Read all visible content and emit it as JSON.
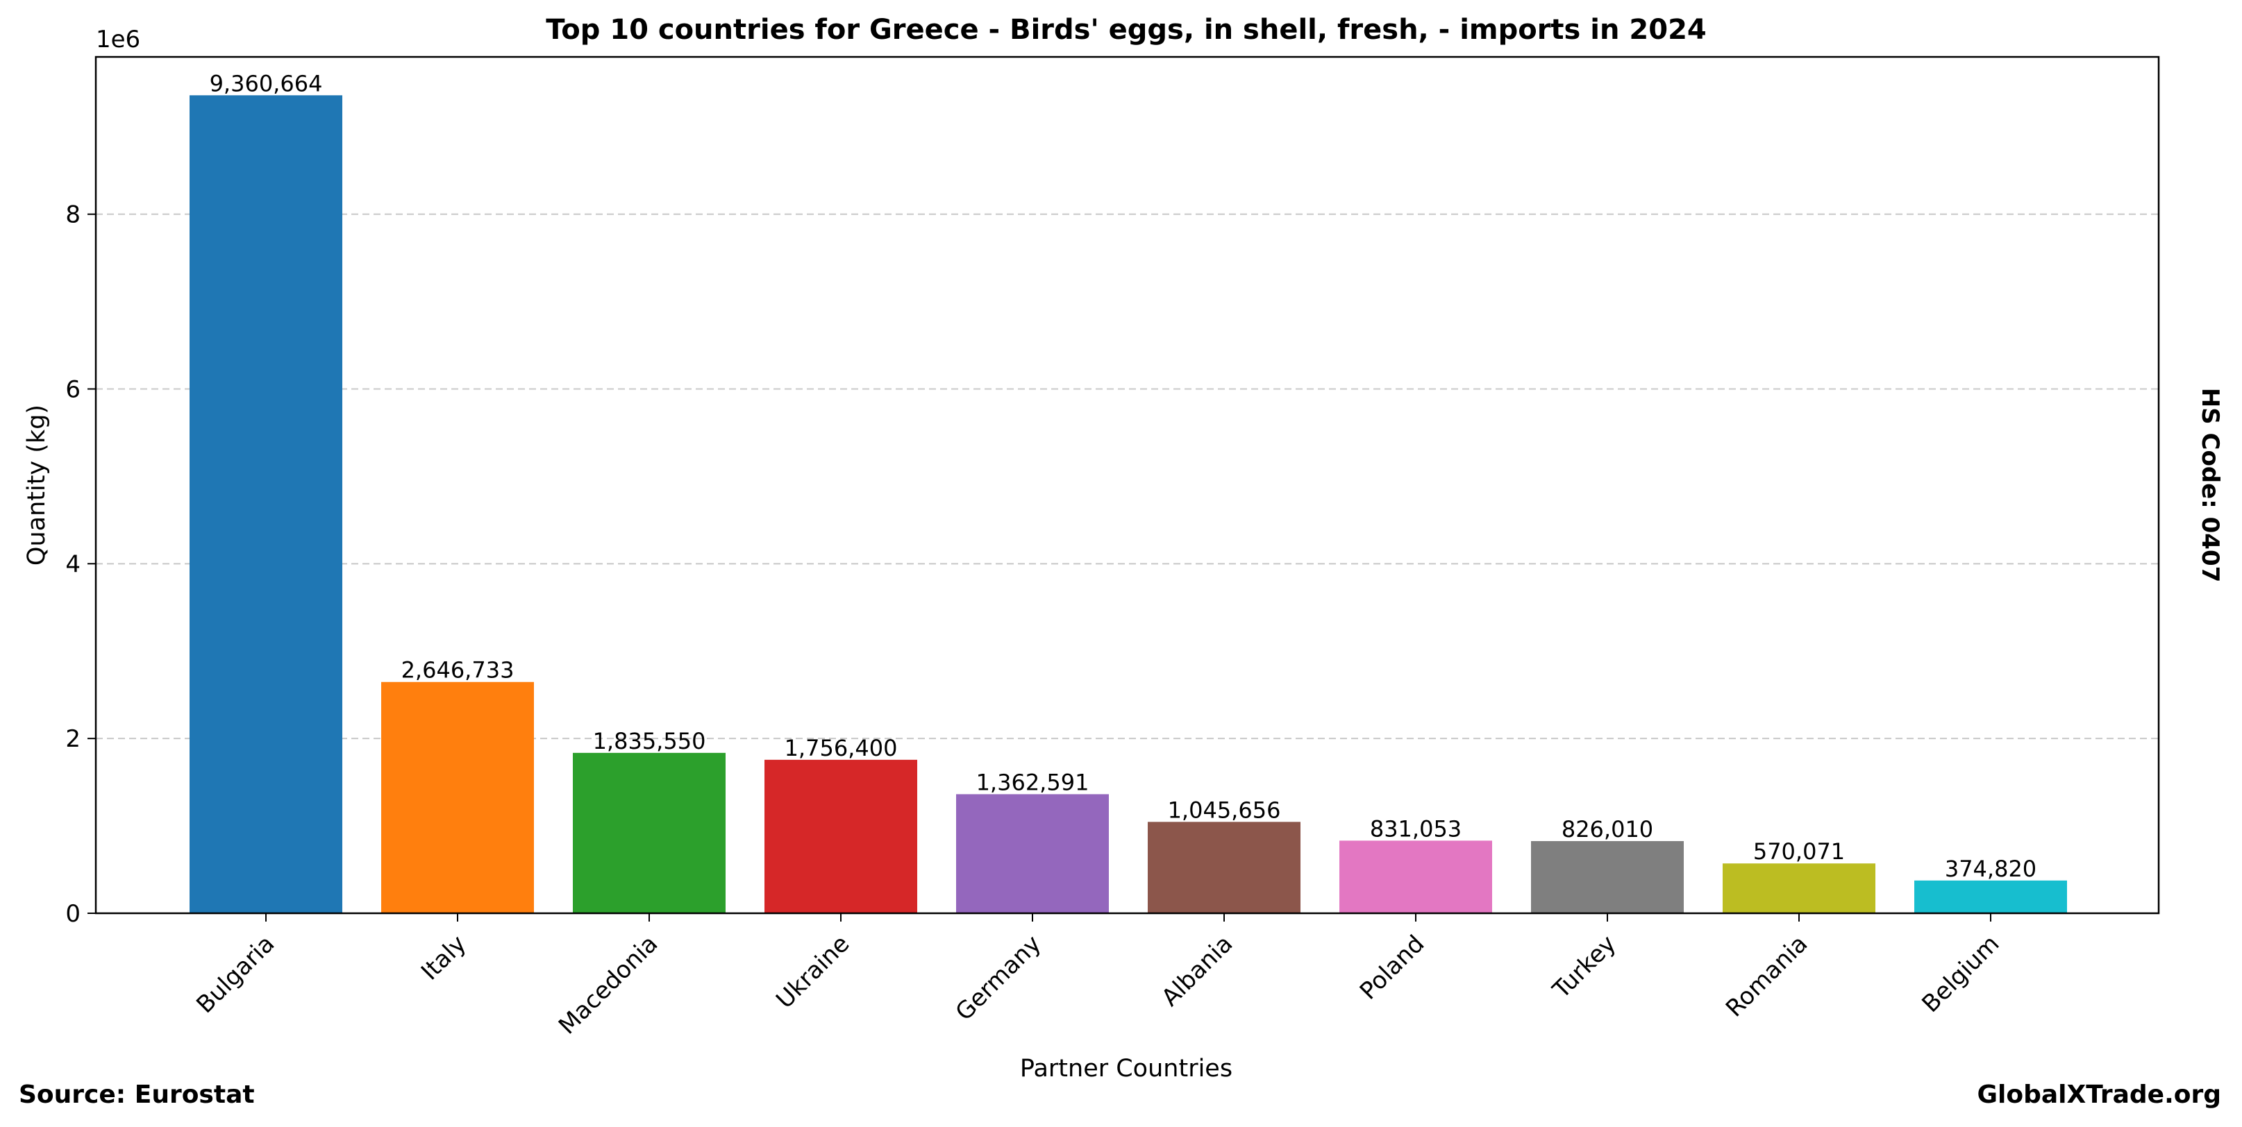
{
  "chart_data": {
    "type": "bar",
    "title": "Top 10 countries for Greece - Birds' eggs, in shell, fresh, - imports in 2024",
    "xlabel": "Partner Countries",
    "ylabel": "Quantity (kg)",
    "y_offset_text": "1e6",
    "y_scale": 1000000,
    "ylim": [
      0,
      9800000
    ],
    "yticks": [
      0,
      2000000,
      4000000,
      6000000,
      8000000
    ],
    "ytick_labels": [
      "0",
      "2",
      "4",
      "6",
      "8"
    ],
    "grid": "y-dashed",
    "categories": [
      "Bulgaria",
      "Italy",
      "Macedonia",
      "Ukraine",
      "Germany",
      "Albania",
      "Poland",
      "Turkey",
      "Romania",
      "Belgium"
    ],
    "values": [
      9360664,
      2646733,
      1835550,
      1756400,
      1362591,
      1045656,
      831053,
      826010,
      570071,
      374820
    ],
    "value_labels": [
      "9,360,664",
      "2,646,733",
      "1,835,550",
      "1,756,400",
      "1,362,591",
      "1,045,656",
      "831,053",
      "826,010",
      "570,071",
      "374,820"
    ],
    "colors": [
      "#1f77b4",
      "#ff7f0e",
      "#2ca02c",
      "#d62728",
      "#9467bd",
      "#8c564b",
      "#e377c2",
      "#7f7f7f",
      "#bcbd22",
      "#17becf"
    ]
  },
  "side_text": "HS Code: 0407",
  "footer": {
    "source": "Source: Eurostat",
    "brand": "GlobalXTrade.org"
  }
}
